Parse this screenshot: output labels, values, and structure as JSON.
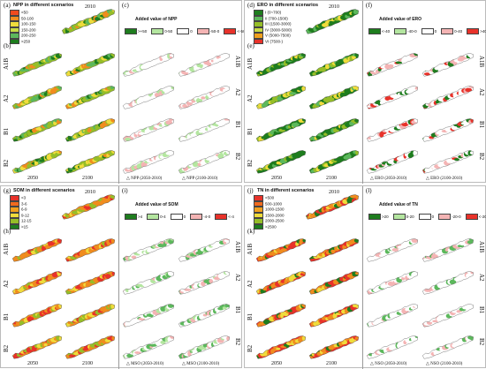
{
  "colors": {
    "dgreen": "#1e7d1e",
    "green": "#5cb85c",
    "lgreen": "#b4e6a0",
    "white": "#ffffff",
    "pink": "#f4b4b4",
    "red": "#e8322a",
    "orange": "#f08c1e",
    "yellow": "#f0dc3c",
    "olive": "#96be28",
    "ygreen": "#c8dc46"
  },
  "panels": {
    "npp": {
      "a_label": "(a)",
      "legend_title": "NPP in different scenarios",
      "legend": [
        "<50",
        "50-100",
        "100-150",
        "150-200",
        "200-250",
        ">250"
      ],
      "year": "2010",
      "b_label": "(b)",
      "c_label": "(c)",
      "c_title": "Added value of NPP",
      "added_legend": [
        ">+50",
        "0-50",
        "0",
        "-50-0",
        "<-50"
      ],
      "rows": [
        "A1B",
        "A2",
        "B1",
        "B2"
      ],
      "cols_left": [
        "2050",
        "2100"
      ],
      "cols_right": [
        "△ NPP (2050-2010)",
        "△ NPP (2100-2010)"
      ]
    },
    "ero": {
      "a_label": "(d)",
      "legend_title": "ERO in different scenarios",
      "legend": [
        "I (0~700)",
        "II (700-1500)",
        "III (1500-3000)",
        "IV (3000-5000)",
        "V (5000-7500)",
        "VI (7500-)"
      ],
      "year": "2010",
      "b_label": "(e)",
      "c_label": "(f)",
      "c_title": "Added value of ERO",
      "added_legend": [
        "<-40",
        "-40-0",
        "0",
        "0-40",
        ">40"
      ],
      "rows": [
        "A1B",
        "A2",
        "B1",
        "B2"
      ],
      "cols_left": [
        "2050",
        "2100"
      ],
      "cols_right": [
        "△ ERO (2050-2010)",
        "△ ERO (2100-2010)"
      ]
    },
    "som": {
      "a_label": "(g)",
      "legend_title": "SOM in different scenarios",
      "legend": [
        "<3",
        "3-6",
        "6-9",
        "9-12",
        "12-15",
        ">15"
      ],
      "year": "2010",
      "b_label": "(h)",
      "c_label": "(i)",
      "c_title": "Added value of SOM",
      "added_legend": [
        ">4",
        "0-4",
        "0",
        "-4-0",
        "<-4"
      ],
      "rows": [
        "A1B",
        "A2",
        "B1",
        "B2"
      ],
      "cols_left": [
        "2050",
        "2100"
      ],
      "cols_right": [
        "△ MSO (2050-2010)",
        "△ MSO (2100-2010)"
      ]
    },
    "tn": {
      "a_label": "(j)",
      "legend_title": "TN in different scenarios",
      "legend": [
        "<500",
        "500-1000",
        "1000-1500",
        "1500-2000",
        "2000-2500",
        ">2500"
      ],
      "year": "2010",
      "b_label": "(k)",
      "c_label": "(l)",
      "c_title": "Added value of TN",
      "added_legend": [
        ">20",
        "0-20",
        "0",
        "-20-0",
        "<-20"
      ],
      "rows": [
        "A1B",
        "A2",
        "B1",
        "B2"
      ],
      "cols_left": [
        "2050",
        "2100"
      ],
      "cols_right": [
        "△ NSO (2050-2010)",
        "△ NSO (2100-2010)"
      ]
    }
  }
}
